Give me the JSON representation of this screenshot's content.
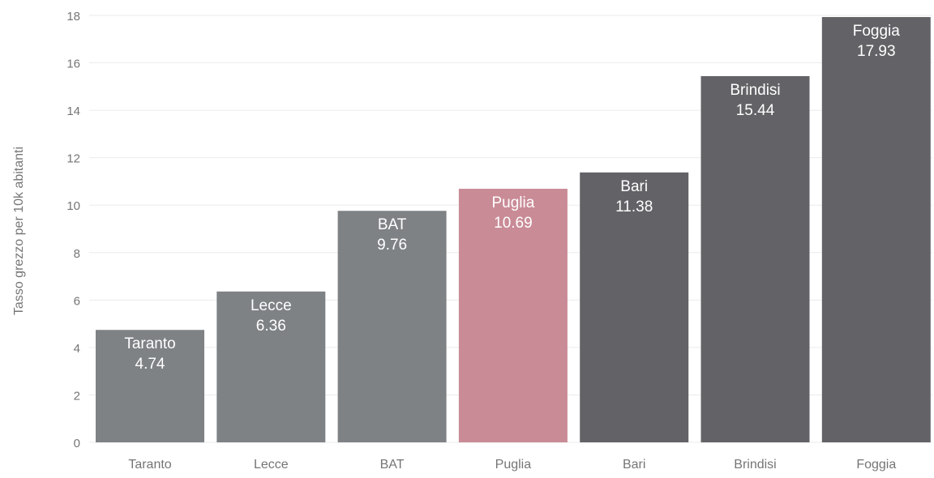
{
  "colors": {
    "light_gray": "#7f8285",
    "highlight": "#c98b96",
    "dark_gray": "#636367",
    "grid": "#ebebeb",
    "axis_text": "#757575",
    "bar_text": "#ffffff"
  },
  "chart_data": {
    "type": "bar",
    "title": "",
    "xlabel": "",
    "ylabel": "Tasso grezzo per 10k abitanti",
    "categories": [
      "Taranto",
      "Lecce",
      "BAT",
      "Puglia",
      "Bari",
      "Brindisi",
      "Foggia"
    ],
    "values": [
      4.74,
      6.36,
      9.76,
      10.69,
      11.38,
      15.44,
      17.93
    ],
    "value_labels": [
      "4.74",
      "6.36",
      "9.76",
      "10.69",
      "11.38",
      "15.44",
      "17.93"
    ],
    "bar_colors": [
      "light_gray",
      "light_gray",
      "light_gray",
      "highlight",
      "dark_gray",
      "dark_gray",
      "dark_gray"
    ],
    "ylim": [
      0,
      18
    ],
    "yticks": [
      0,
      2,
      4,
      6,
      8,
      10,
      12,
      14,
      16,
      18
    ],
    "grid": true,
    "legend": "none"
  }
}
